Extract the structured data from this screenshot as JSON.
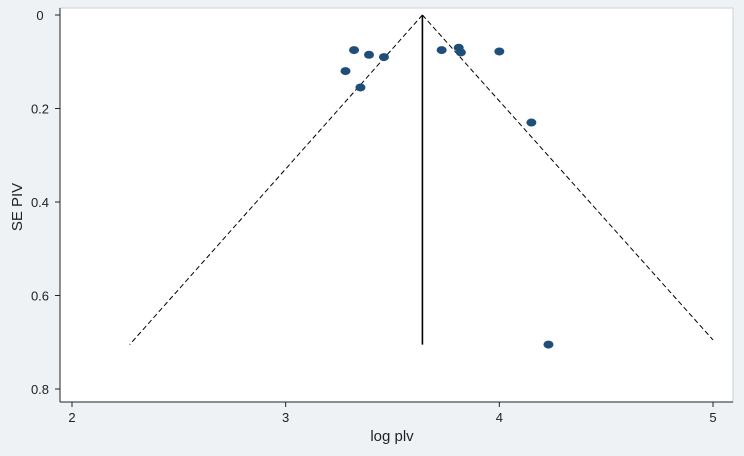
{
  "chart_data": {
    "type": "scatter",
    "subtype": "funnel-plot",
    "title": "",
    "xlabel": "log plv",
    "ylabel": "SE PIV",
    "xlim": [
      2,
      5
    ],
    "ylim": [
      0,
      0.8
    ],
    "y_reversed": true,
    "x_ticks": [
      "2",
      "3",
      "4",
      "5"
    ],
    "y_ticks": [
      "0",
      "0.2",
      "0.4",
      "0.6",
      "0.8"
    ],
    "grid": false,
    "legend": "none",
    "points": [
      {
        "x": 3.32,
        "y": 0.075
      },
      {
        "x": 3.39,
        "y": 0.085
      },
      {
        "x": 3.46,
        "y": 0.09
      },
      {
        "x": 3.28,
        "y": 0.12
      },
      {
        "x": 3.35,
        "y": 0.155
      },
      {
        "x": 3.73,
        "y": 0.075
      },
      {
        "x": 3.81,
        "y": 0.07
      },
      {
        "x": 3.82,
        "y": 0.08
      },
      {
        "x": 4.0,
        "y": 0.078
      },
      {
        "x": 4.15,
        "y": 0.23
      },
      {
        "x": 4.23,
        "y": 0.705
      }
    ],
    "pooled_estimate": 3.64,
    "pooled_line_y_range": [
      0,
      0.705
    ],
    "funnel_limits": {
      "apex": {
        "x": 3.64,
        "y": 0
      },
      "left_base": {
        "x": 2.27,
        "y": 0.705
      },
      "right_base": {
        "x": 5.0,
        "y": 0.695
      }
    },
    "colors": {
      "point": "#1f4e79",
      "line": "#000000",
      "plot_bg": "#ffffff",
      "frame_bg": "#eef2f5"
    }
  }
}
